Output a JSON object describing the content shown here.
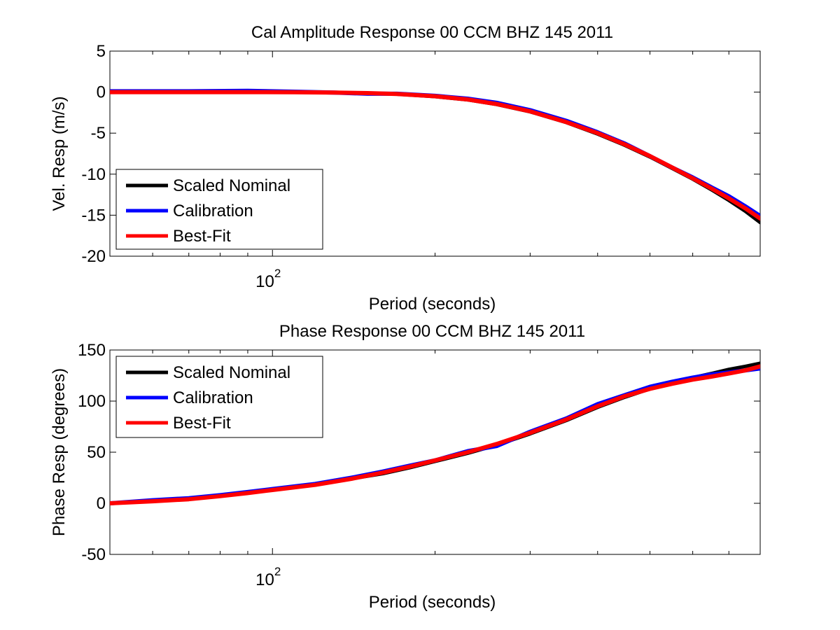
{
  "chart_data": [
    {
      "type": "line",
      "title": "Cal Amplitude Response 00 CCM BHZ 145 2011",
      "xlabel": "Period (seconds)",
      "ylabel": "Vel. Resp (m/s)",
      "xscale": "log",
      "xlim": [
        50,
        800
      ],
      "ylim": [
        -20,
        5
      ],
      "yticks": [
        5,
        0,
        -5,
        -10,
        -15,
        -20
      ],
      "xtick_labels": [
        {
          "base": "10",
          "exp": "2",
          "value": 100
        }
      ],
      "grid": false,
      "legend_position": "bottom-left",
      "x": [
        50,
        70,
        90,
        110,
        130,
        150,
        170,
        200,
        230,
        260,
        300,
        350,
        400,
        450,
        500,
        550,
        600,
        650,
        700,
        750,
        800
      ],
      "series": [
        {
          "name": "Scaled Nominal",
          "color": "#000000",
          "values": [
            0,
            0,
            0,
            -0.02,
            -0.06,
            -0.13,
            -0.25,
            -0.55,
            -0.95,
            -1.5,
            -2.4,
            -3.7,
            -5.1,
            -6.5,
            -7.9,
            -9.3,
            -10.6,
            -11.9,
            -13.2,
            -14.5,
            -15.9
          ]
        },
        {
          "name": "Calibration",
          "color": "#0000ff",
          "values": [
            0.1,
            0.1,
            0.15,
            0.05,
            -0.05,
            -0.2,
            -0.2,
            -0.45,
            -0.8,
            -1.3,
            -2.2,
            -3.5,
            -4.9,
            -6.3,
            -7.8,
            -9.2,
            -10.4,
            -11.6,
            -12.7,
            -13.9,
            -15.1
          ]
        },
        {
          "name": "Best-Fit",
          "color": "#ff0000",
          "values": [
            0,
            0,
            0,
            -0.02,
            -0.05,
            -0.12,
            -0.22,
            -0.5,
            -0.9,
            -1.45,
            -2.35,
            -3.65,
            -5.0,
            -6.4,
            -7.8,
            -9.2,
            -10.5,
            -11.75,
            -12.95,
            -14.15,
            -15.4
          ]
        }
      ]
    },
    {
      "type": "line",
      "title": "Phase Response 00 CCM BHZ 145 2011",
      "xlabel": "Period (seconds)",
      "ylabel": "Phase Resp (degrees)",
      "xscale": "log",
      "xlim": [
        50,
        800
      ],
      "ylim": [
        -50,
        150
      ],
      "yticks": [
        150,
        100,
        50,
        0,
        -50
      ],
      "xtick_labels": [
        {
          "base": "10",
          "exp": "2",
          "value": 100
        }
      ],
      "grid": false,
      "legend_position": "top-left",
      "x": [
        50,
        60,
        70,
        80,
        90,
        100,
        120,
        140,
        160,
        180,
        200,
        230,
        260,
        300,
        350,
        400,
        450,
        500,
        550,
        600,
        650,
        700,
        750,
        800
      ],
      "series": [
        {
          "name": "Scaled Nominal",
          "color": "#000000",
          "values": [
            0,
            2,
            4,
            7,
            10,
            13,
            18,
            24,
            29,
            35,
            41,
            49,
            57,
            68,
            81,
            94,
            104,
            112,
            118,
            123,
            127,
            131,
            134,
            137
          ]
        },
        {
          "name": "Calibration",
          "color": "#0000ff",
          "values": [
            0,
            3,
            5,
            8,
            11,
            14,
            19,
            25,
            31,
            37,
            42,
            51,
            56,
            70,
            83,
            97,
            106,
            114,
            119,
            123,
            126,
            128,
            130,
            132
          ]
        },
        {
          "name": "Best-Fit",
          "color": "#ff0000",
          "values": [
            0,
            2,
            4,
            7,
            10,
            13,
            18,
            24,
            30,
            36,
            42,
            50,
            58,
            69,
            82,
            95,
            105,
            112,
            117,
            121,
            124,
            127,
            130,
            134
          ]
        }
      ]
    }
  ]
}
